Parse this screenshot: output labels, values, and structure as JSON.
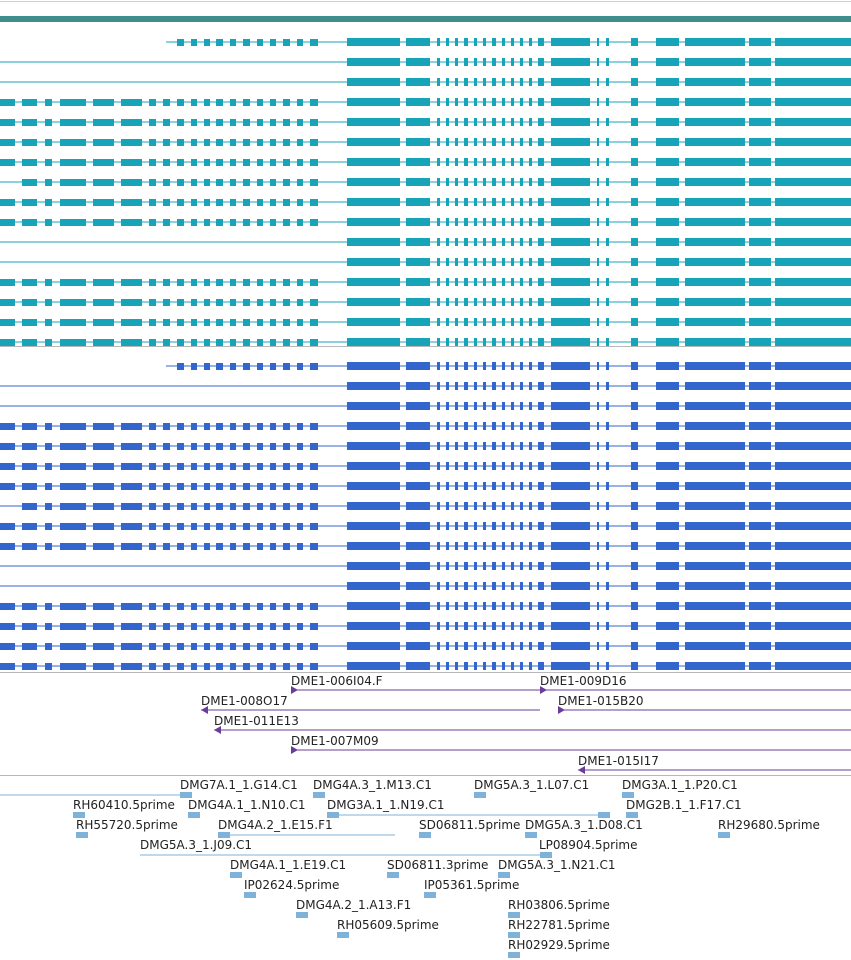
{
  "colors": {
    "track_a": "#17a4b8",
    "track_b": "#3366cc",
    "bac": "#6a3d9a",
    "est": "#7fb2d9",
    "header_bar": "#3e8f8c"
  },
  "bac_clones": [
    {
      "label": "DME1-006I04.F"
    },
    {
      "label": "DME1-009D16"
    },
    {
      "label": "DME1-008O17"
    },
    {
      "label": "DME1-015B20"
    },
    {
      "label": "DME1-011E13"
    },
    {
      "label": "DME1-007M09"
    },
    {
      "label": "DME1-015I17"
    }
  ],
  "est_clones": [
    {
      "label": "DMG7A.1_1.G14.C1"
    },
    {
      "label": "DMG4A.3_1.M13.C1"
    },
    {
      "label": "DMG5A.3_1.L07.C1"
    },
    {
      "label": "DMG3A.1_1.P20.C1"
    },
    {
      "label": "RH60410.5prime"
    },
    {
      "label": "DMG4A.1_1.N10.C1"
    },
    {
      "label": "DMG3A.1_1.N19.C1"
    },
    {
      "label": "DMG2B.1_1.F17.C1"
    },
    {
      "label": "RH55720.5prime"
    },
    {
      "label": "DMG4A.2_1.E15.F1"
    },
    {
      "label": "SD06811.5prime"
    },
    {
      "label": "DMG5A.3_1.D08.C1"
    },
    {
      "label": "RH29680.5prime"
    },
    {
      "label": "DMG5A.3_1.J09.C1"
    },
    {
      "label": "LP08904.5prime"
    },
    {
      "label": "DMG4A.1_1.E19.C1"
    },
    {
      "label": "SD06811.3prime"
    },
    {
      "label": "DMG5A.3_1.N21.C1"
    },
    {
      "label": "IP02624.5prime"
    },
    {
      "label": "IP05361.5prime"
    },
    {
      "label": "DMG4A.2_1.A13.F1"
    },
    {
      "label": "RH03806.5prime"
    },
    {
      "label": "RH05609.5prime"
    },
    {
      "label": "RH22781.5prime"
    },
    {
      "label": "RH02929.5prime"
    }
  ]
}
